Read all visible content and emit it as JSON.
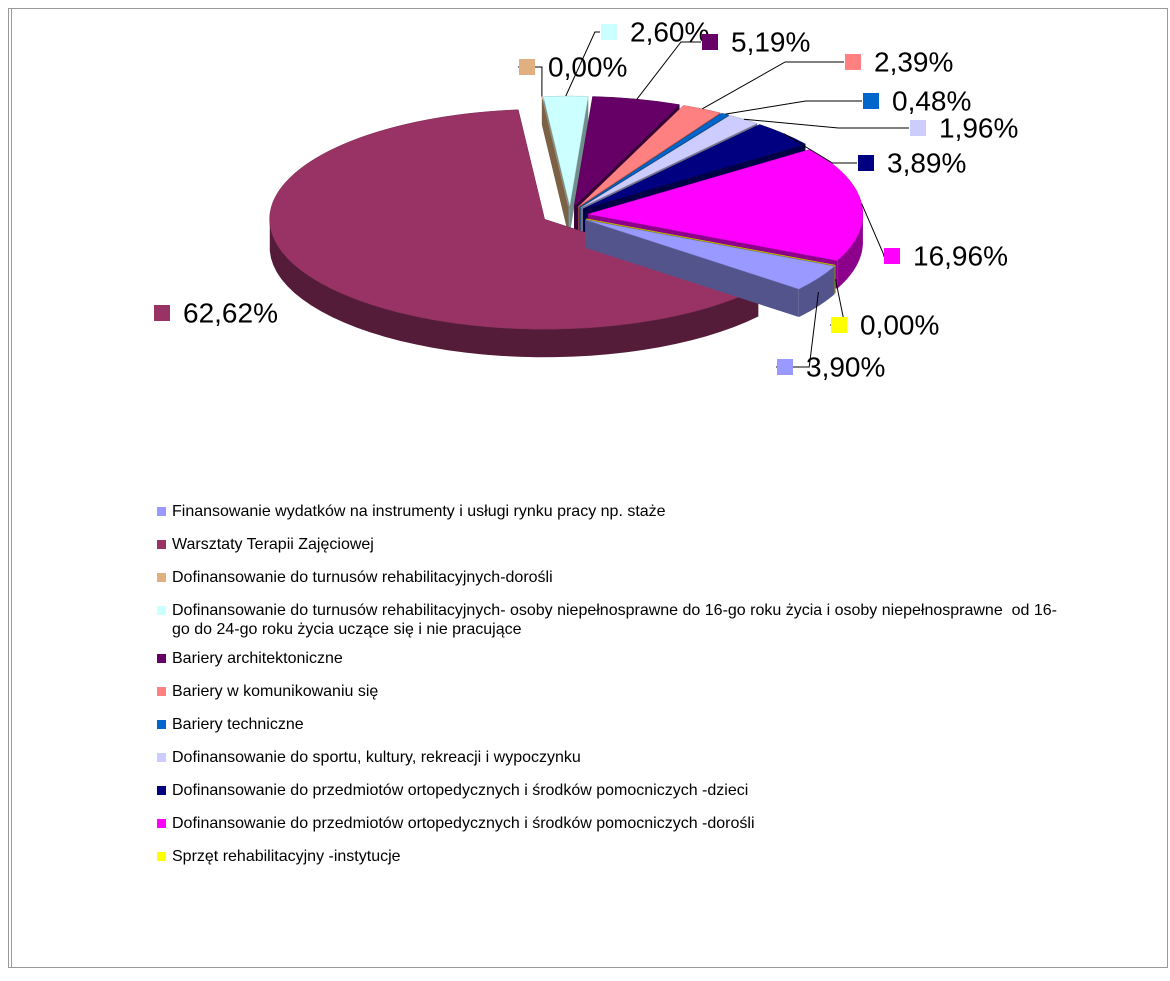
{
  "chart_data": {
    "type": "pie",
    "categories": [
      "Finansowanie wydatków na instrumenty i usługi rynku pracy np. staże",
      "Warsztaty Terapii Zajęciowej",
      "Dofinansowanie do turnusów rehabilitacyjnych-dorośli",
      "Dofinansowanie do turnusów rehabilitacyjnych- osoby niepełnosprawne do 16-go roku życia i osoby niepełnosprawne  od 16-go do 24-go roku życia uczące się i nie pracujące",
      "Bariery architektoniczne",
      "Bariery w komunikowaniu się",
      "Bariery techniczne",
      "Dofinansowanie do sportu, kultury, rekreacji i wypoczynku",
      "Dofinansowanie do przedmiotów ortopedycznych i środków pomocniczych -dzieci",
      "Dofinansowanie do przedmiotów ortopedycznych i środków pomocniczych -dorośli",
      "Sprzęt rehabilitacyjny -instytucje"
    ],
    "values": [
      3.9,
      62.62,
      0.0,
      2.6,
      5.19,
      2.39,
      0.48,
      1.96,
      3.89,
      16.96,
      0.0
    ],
    "value_labels": [
      "3,90%",
      "62,62%",
      "0,00%",
      "2,60%",
      "5,19%",
      "2,39%",
      "0,48%",
      "1,96%",
      "3,89%",
      "16,96%",
      "0,00%"
    ],
    "colors": [
      "#9999ff",
      "#993366",
      "#e0b080",
      "#ccffff",
      "#660066",
      "#ff8080",
      "#0066cc",
      "#ccccff",
      "#000080",
      "#ff00ff",
      "#ffff00"
    ],
    "legend": "bottom"
  }
}
